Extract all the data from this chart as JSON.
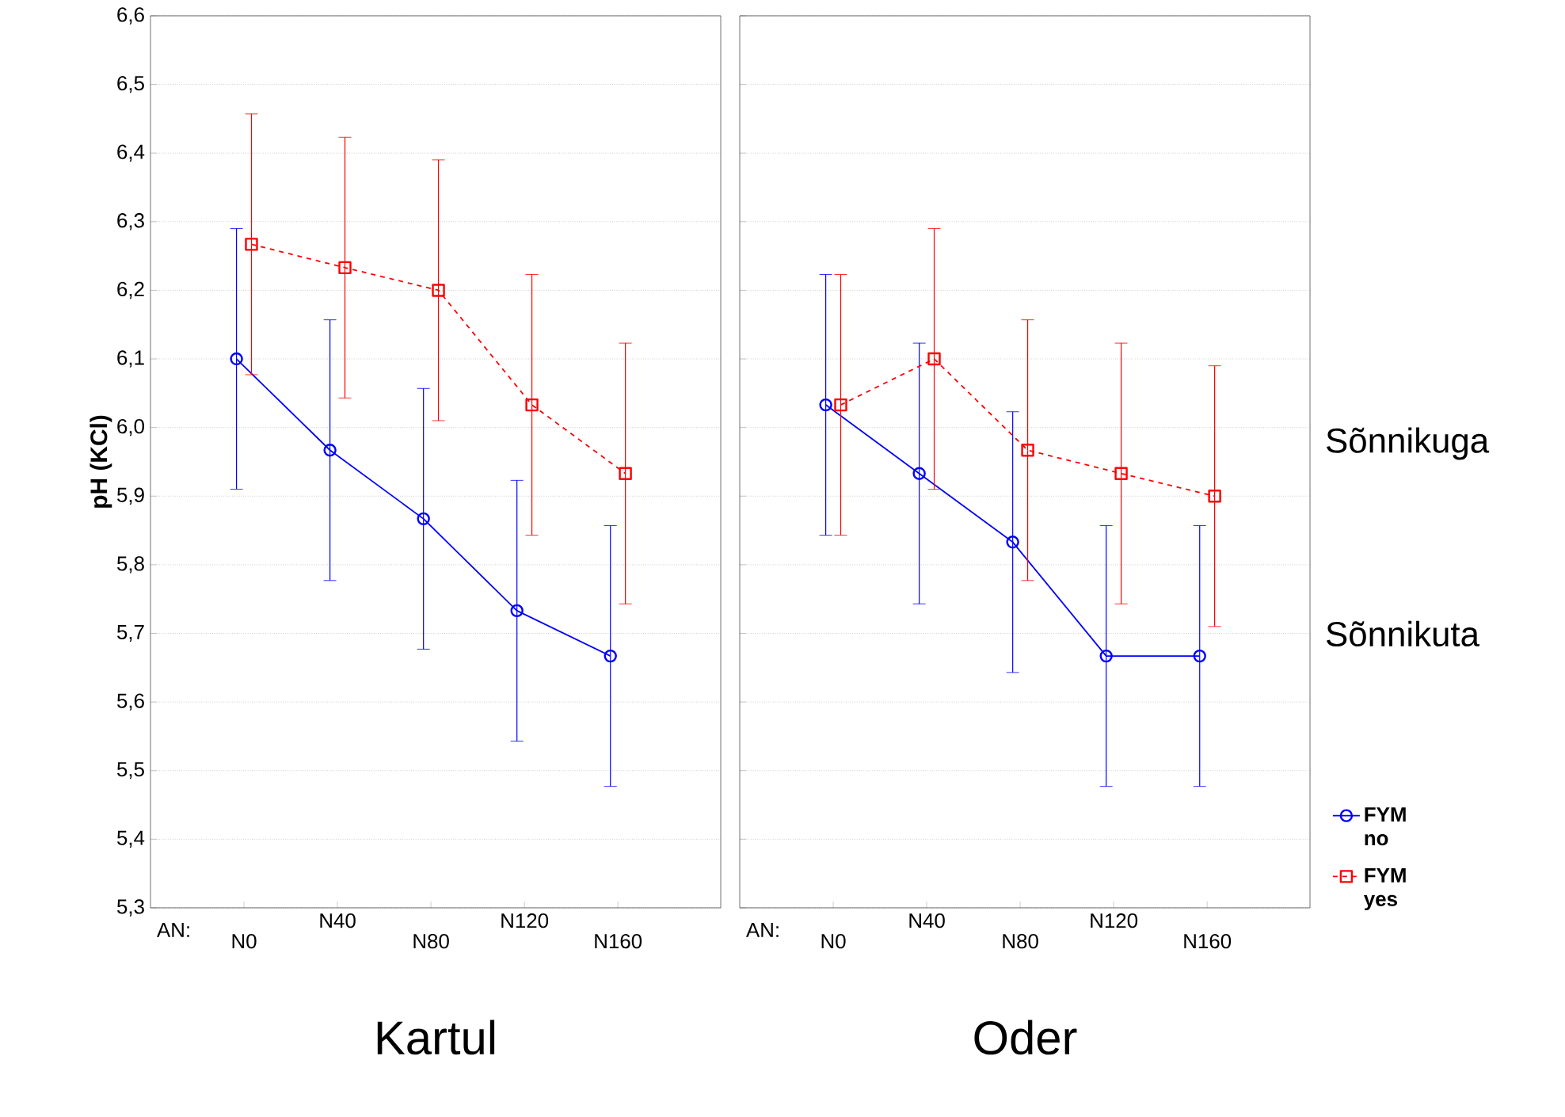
{
  "chart_data": [
    {
      "type": "line",
      "title": "Kartul",
      "xlabel": "AN:",
      "ylabel": "pH (KCl)",
      "categories": [
        "N0",
        "N40",
        "N80",
        "N120",
        "N160"
      ],
      "series": [
        {
          "color": "#0000ff",
          "marker": "circle",
          "line_style": "solid",
          "values": [
            6.1,
            5.967,
            5.867,
            5.733,
            5.667
          ],
          "errors": [
            0.19,
            0.19,
            0.19,
            0.19,
            0.19
          ]
        },
        {
          "color": "#ff0000",
          "marker": "square",
          "line_style": "dashed",
          "values": [
            6.267,
            6.233,
            6.2,
            6.033,
            5.933
          ],
          "errors": [
            0.19,
            0.19,
            0.19,
            0.19,
            0.19
          ]
        }
      ],
      "ylim": [
        5.3,
        6.6
      ],
      "yticks": [
        {
          "value": 5.3,
          "label": "5,3"
        },
        {
          "value": 5.4,
          "label": "5,4"
        },
        {
          "value": 5.5,
          "label": "5,5"
        },
        {
          "value": 5.6,
          "label": "5,6"
        },
        {
          "value": 5.7,
          "label": "5,7"
        },
        {
          "value": 5.8,
          "label": "5,8"
        },
        {
          "value": 5.9,
          "label": "5,9"
        },
        {
          "value": 6.0,
          "label": "6,0"
        },
        {
          "value": 6.1,
          "label": "6,1"
        },
        {
          "value": 6.2,
          "label": "6,2"
        },
        {
          "value": 6.3,
          "label": "6,3"
        },
        {
          "value": 6.4,
          "label": "6,4"
        },
        {
          "value": 6.5,
          "label": "6,5"
        },
        {
          "value": 6.6,
          "label": "6,6"
        }
      ],
      "grid": "y",
      "legend": false
    },
    {
      "type": "line",
      "title": "Oder",
      "xlabel": "AN:",
      "categories": [
        "N0",
        "N40",
        "N80",
        "N120",
        "N160"
      ],
      "series": [
        {
          "name": "FYM no",
          "color": "#0000ff",
          "marker": "circle",
          "line_style": "solid",
          "values": [
            6.033,
            5.933,
            5.833,
            5.667,
            5.667
          ],
          "errors": [
            0.19,
            0.19,
            0.19,
            0.19,
            0.19
          ]
        },
        {
          "name": "FYM yes",
          "color": "#ff0000",
          "marker": "square",
          "line_style": "dashed",
          "values": [
            6.033,
            6.1,
            5.967,
            5.933,
            5.9
          ],
          "errors": [
            0.19,
            0.19,
            0.19,
            0.19,
            0.19
          ]
        }
      ],
      "ylim": [
        5.3,
        6.6
      ],
      "yticks": [
        5.3,
        5.4,
        5.5,
        5.6,
        5.7,
        5.8,
        5.9,
        6.0,
        6.1,
        6.2,
        6.3,
        6.4,
        6.5,
        6.6
      ],
      "tick_labels": "x",
      "grid": "y",
      "legend": "bottom right",
      "annotations": [
        "Sõnnikuga",
        "Sõnnikuta"
      ]
    }
  ]
}
